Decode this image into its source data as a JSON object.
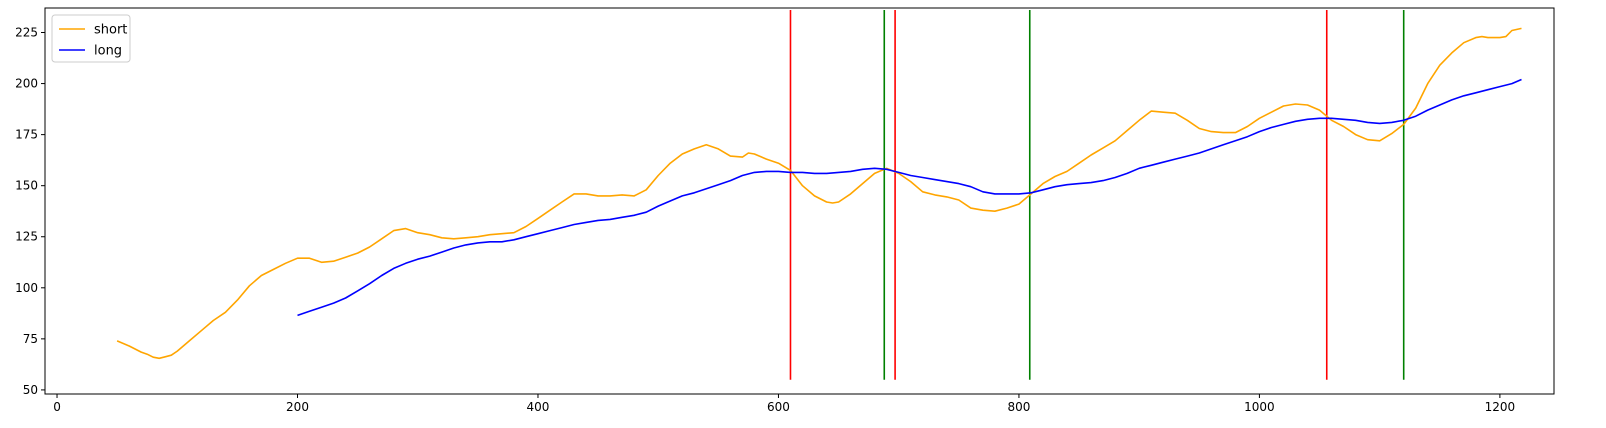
{
  "chart_data": {
    "type": "line",
    "xlim": [
      -10,
      1245
    ],
    "ylim": [
      48,
      237
    ],
    "grid": false,
    "legend_placement": "upper-left",
    "xticks": [
      0,
      200,
      400,
      600,
      800,
      1000,
      1200
    ],
    "yticks": [
      50,
      75,
      100,
      125,
      150,
      175,
      200,
      225
    ],
    "series": [
      {
        "name": "short",
        "color": "#ffa500",
        "points": [
          [
            50,
            74
          ],
          [
            60,
            71.5
          ],
          [
            70,
            68.5
          ],
          [
            75,
            67.5
          ],
          [
            80,
            66
          ],
          [
            85,
            65.5
          ],
          [
            90,
            66.2
          ],
          [
            95,
            67
          ],
          [
            100,
            69
          ],
          [
            110,
            74
          ],
          [
            120,
            79
          ],
          [
            130,
            84
          ],
          [
            140,
            88
          ],
          [
            150,
            94
          ],
          [
            160,
            101
          ],
          [
            170,
            106
          ],
          [
            180,
            109
          ],
          [
            190,
            112
          ],
          [
            200,
            114.5
          ],
          [
            210,
            114.5
          ],
          [
            220,
            112.5
          ],
          [
            230,
            113
          ],
          [
            240,
            115
          ],
          [
            250,
            117
          ],
          [
            260,
            120
          ],
          [
            270,
            124
          ],
          [
            280,
            128
          ],
          [
            290,
            129
          ],
          [
            300,
            127
          ],
          [
            310,
            126
          ],
          [
            320,
            124.5
          ],
          [
            330,
            124
          ],
          [
            340,
            124.5
          ],
          [
            350,
            125
          ],
          [
            360,
            126
          ],
          [
            370,
            126.5
          ],
          [
            380,
            127
          ],
          [
            390,
            130
          ],
          [
            400,
            134
          ],
          [
            410,
            138
          ],
          [
            420,
            142
          ],
          [
            430,
            146
          ],
          [
            440,
            146
          ],
          [
            450,
            145
          ],
          [
            460,
            145
          ],
          [
            470,
            145.5
          ],
          [
            480,
            145
          ],
          [
            490,
            148
          ],
          [
            500,
            155
          ],
          [
            510,
            161
          ],
          [
            520,
            165.5
          ],
          [
            530,
            168
          ],
          [
            540,
            170
          ],
          [
            550,
            168
          ],
          [
            560,
            164.5
          ],
          [
            570,
            164
          ],
          [
            575,
            166
          ],
          [
            580,
            165.5
          ],
          [
            590,
            163
          ],
          [
            600,
            161
          ],
          [
            610,
            157.5
          ],
          [
            620,
            150
          ],
          [
            630,
            145
          ],
          [
            640,
            142
          ],
          [
            645,
            141.5
          ],
          [
            650,
            142
          ],
          [
            660,
            146
          ],
          [
            670,
            151
          ],
          [
            680,
            156
          ],
          [
            690,
            158.5
          ],
          [
            700,
            156
          ],
          [
            710,
            152
          ],
          [
            720,
            147
          ],
          [
            730,
            145.5
          ],
          [
            740,
            144.5
          ],
          [
            750,
            143
          ],
          [
            760,
            139
          ],
          [
            770,
            138
          ],
          [
            780,
            137.5
          ],
          [
            790,
            139
          ],
          [
            800,
            141
          ],
          [
            810,
            146
          ],
          [
            820,
            151
          ],
          [
            830,
            154.5
          ],
          [
            840,
            157
          ],
          [
            850,
            161
          ],
          [
            860,
            165
          ],
          [
            870,
            168.5
          ],
          [
            880,
            172
          ],
          [
            890,
            177
          ],
          [
            900,
            182
          ],
          [
            910,
            186.5
          ],
          [
            920,
            186
          ],
          [
            930,
            185.5
          ],
          [
            940,
            182
          ],
          [
            950,
            178
          ],
          [
            960,
            176.5
          ],
          [
            970,
            176
          ],
          [
            980,
            176
          ],
          [
            990,
            179
          ],
          [
            1000,
            183
          ],
          [
            1010,
            186
          ],
          [
            1020,
            189
          ],
          [
            1030,
            190
          ],
          [
            1040,
            189.5
          ],
          [
            1050,
            187
          ],
          [
            1060,
            182
          ],
          [
            1070,
            179
          ],
          [
            1080,
            175
          ],
          [
            1090,
            172.5
          ],
          [
            1100,
            172
          ],
          [
            1110,
            175.5
          ],
          [
            1120,
            180
          ],
          [
            1130,
            188
          ],
          [
            1140,
            200
          ],
          [
            1150,
            209
          ],
          [
            1160,
            215
          ],
          [
            1170,
            220
          ],
          [
            1180,
            222.5
          ],
          [
            1185,
            223
          ],
          [
            1190,
            222.5
          ],
          [
            1200,
            222.5
          ],
          [
            1205,
            223
          ],
          [
            1210,
            226
          ],
          [
            1218,
            227
          ]
        ]
      },
      {
        "name": "long",
        "color": "#0000ff",
        "points": [
          [
            200,
            86.5
          ],
          [
            210,
            88.5
          ],
          [
            220,
            90.5
          ],
          [
            230,
            92.5
          ],
          [
            240,
            95
          ],
          [
            250,
            98.5
          ],
          [
            260,
            102
          ],
          [
            270,
            106
          ],
          [
            280,
            109.5
          ],
          [
            290,
            112
          ],
          [
            300,
            114
          ],
          [
            310,
            115.5
          ],
          [
            320,
            117.5
          ],
          [
            330,
            119.5
          ],
          [
            340,
            121
          ],
          [
            350,
            122
          ],
          [
            360,
            122.5
          ],
          [
            370,
            122.5
          ],
          [
            380,
            123.5
          ],
          [
            390,
            125
          ],
          [
            400,
            126.5
          ],
          [
            410,
            128
          ],
          [
            420,
            129.5
          ],
          [
            430,
            131
          ],
          [
            440,
            132
          ],
          [
            450,
            133
          ],
          [
            460,
            133.5
          ],
          [
            470,
            134.5
          ],
          [
            480,
            135.5
          ],
          [
            490,
            137
          ],
          [
            500,
            140
          ],
          [
            510,
            142.5
          ],
          [
            520,
            145
          ],
          [
            530,
            146.5
          ],
          [
            540,
            148.5
          ],
          [
            550,
            150.5
          ],
          [
            560,
            152.5
          ],
          [
            570,
            155
          ],
          [
            580,
            156.5
          ],
          [
            590,
            157
          ],
          [
            600,
            157
          ],
          [
            610,
            156.5
          ],
          [
            620,
            156.5
          ],
          [
            630,
            156
          ],
          [
            640,
            156
          ],
          [
            650,
            156.5
          ],
          [
            660,
            157
          ],
          [
            670,
            158
          ],
          [
            680,
            158.5
          ],
          [
            690,
            158
          ],
          [
            700,
            156.5
          ],
          [
            710,
            155
          ],
          [
            720,
            154
          ],
          [
            730,
            153
          ],
          [
            740,
            152
          ],
          [
            750,
            151
          ],
          [
            760,
            149.5
          ],
          [
            770,
            147
          ],
          [
            780,
            146
          ],
          [
            790,
            146
          ],
          [
            800,
            146
          ],
          [
            810,
            146.5
          ],
          [
            820,
            148
          ],
          [
            830,
            149.5
          ],
          [
            840,
            150.5
          ],
          [
            850,
            151
          ],
          [
            860,
            151.5
          ],
          [
            870,
            152.5
          ],
          [
            880,
            154
          ],
          [
            890,
            156
          ],
          [
            900,
            158.5
          ],
          [
            910,
            160
          ],
          [
            920,
            161.5
          ],
          [
            930,
            163
          ],
          [
            940,
            164.5
          ],
          [
            950,
            166
          ],
          [
            960,
            168
          ],
          [
            970,
            170
          ],
          [
            980,
            172
          ],
          [
            990,
            174
          ],
          [
            1000,
            176.5
          ],
          [
            1010,
            178.5
          ],
          [
            1020,
            180
          ],
          [
            1030,
            181.5
          ],
          [
            1040,
            182.5
          ],
          [
            1050,
            183
          ],
          [
            1060,
            183
          ],
          [
            1070,
            182.5
          ],
          [
            1080,
            182
          ],
          [
            1090,
            181
          ],
          [
            1100,
            180.5
          ],
          [
            1110,
            181
          ],
          [
            1120,
            182
          ],
          [
            1130,
            184
          ],
          [
            1140,
            187
          ],
          [
            1150,
            189.5
          ],
          [
            1160,
            192
          ],
          [
            1170,
            194
          ],
          [
            1180,
            195.5
          ],
          [
            1190,
            197
          ],
          [
            1200,
            198.5
          ],
          [
            1210,
            200
          ],
          [
            1218,
            202
          ]
        ]
      }
    ],
    "vertical_lines": [
      {
        "x": 610,
        "color": "#ff0000",
        "ymin": 55,
        "ymax": 236
      },
      {
        "x": 688,
        "color": "#008000",
        "ymin": 55,
        "ymax": 236
      },
      {
        "x": 697,
        "color": "#ff0000",
        "ymin": 55,
        "ymax": 236
      },
      {
        "x": 809,
        "color": "#008000",
        "ymin": 55,
        "ymax": 236
      },
      {
        "x": 1056,
        "color": "#ff0000",
        "ymin": 55,
        "ymax": 236
      },
      {
        "x": 1120,
        "color": "#008000",
        "ymin": 55,
        "ymax": 236
      }
    ]
  }
}
